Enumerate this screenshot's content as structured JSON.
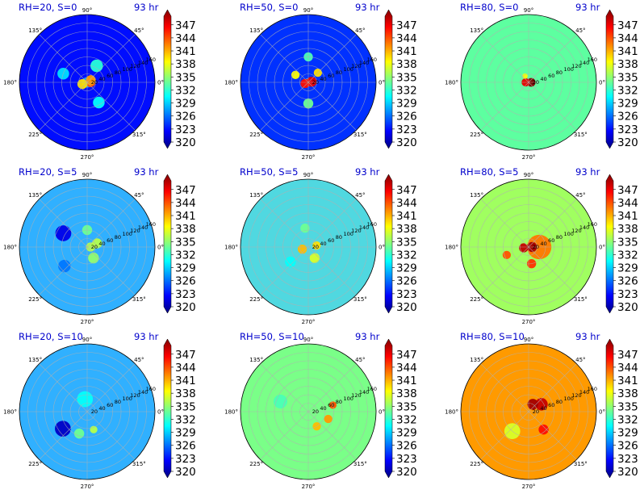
{
  "figure": {
    "colormap": [
      "#000080",
      "#0000ff",
      "#0080ff",
      "#00ffff",
      "#80ff80",
      "#ffff00",
      "#ff8000",
      "#ff0000",
      "#800000"
    ],
    "grid_color": "#b0b0b0",
    "title_color": "#0000cc"
  },
  "chart_data": [
    {
      "type": "heatmap",
      "subtype": "polar",
      "title": "RH=20, S=0",
      "time_label": "93 hr",
      "background": "#1aa0ff",
      "theta_tick_labels": [
        "90°",
        "45°",
        "0°",
        "315°",
        "270°",
        "225°",
        "180°",
        "135°"
      ],
      "r_tick_labels": [
        "20",
        "40",
        "60",
        "80",
        "100",
        "120",
        "140",
        "160"
      ],
      "colorbar": {
        "ticks": [
          "347",
          "344",
          "341",
          "338",
          "335",
          "332",
          "329",
          "326",
          "323",
          "320"
        ],
        "vmin": 320,
        "vmax": 349
      },
      "features": [
        {
          "r": 75,
          "theta": 0,
          "width": 175,
          "value": 324
        },
        {
          "r": 8,
          "theta": 0,
          "width": 15,
          "value": 343
        },
        {
          "r": 10,
          "theta": 30,
          "width": 16,
          "value": 341
        },
        {
          "r": 12,
          "theta": 200,
          "width": 16,
          "value": 339
        },
        {
          "r": 45,
          "theta": 60,
          "width": 22,
          "value": 332
        },
        {
          "r": 55,
          "theta": 300,
          "width": 20,
          "value": 331
        },
        {
          "r": 60,
          "theta": 160,
          "width": 20,
          "value": 330
        }
      ]
    },
    {
      "type": "heatmap",
      "subtype": "polar",
      "title": "RH=50, S=0",
      "time_label": "93 hr",
      "background": "#40c0ff",
      "theta_tick_labels": [
        "90°",
        "45°",
        "0°",
        "315°",
        "270°",
        "225°",
        "180°",
        "135°"
      ],
      "r_tick_labels": [
        "20",
        "40",
        "60",
        "80",
        "100",
        "120",
        "140",
        "160"
      ],
      "colorbar": {
        "ticks": [
          "347",
          "344",
          "341",
          "338",
          "335",
          "332",
          "329",
          "326",
          "323",
          "320"
        ],
        "vmin": 320,
        "vmax": 349
      },
      "features": [
        {
          "r": 80,
          "theta": 0,
          "width": 180,
          "value": 325
        },
        {
          "r": 8,
          "theta": 10,
          "width": 16,
          "value": 346
        },
        {
          "r": 8,
          "theta": 200,
          "width": 14,
          "value": 345
        },
        {
          "r": 32,
          "theta": 45,
          "width": 12,
          "value": 339
        },
        {
          "r": 35,
          "theta": 150,
          "width": 12,
          "value": 338
        },
        {
          "r": 50,
          "theta": 270,
          "width": 16,
          "value": 334
        },
        {
          "r": 60,
          "theta": 90,
          "width": 14,
          "value": 333
        }
      ]
    },
    {
      "type": "heatmap",
      "subtype": "polar",
      "title": "RH=80, S=0",
      "time_label": "93 hr",
      "background": "#5dffa0",
      "theta_tick_labels": [
        "90°",
        "45°",
        "0°",
        "315°",
        "270°",
        "225°",
        "180°",
        "135°"
      ],
      "r_tick_labels": [
        "20",
        "40",
        "60",
        "80",
        "100",
        "120",
        "140",
        "160"
      ],
      "colorbar": {
        "ticks": [
          "347",
          "344",
          "341",
          "338",
          "335",
          "332",
          "329",
          "326",
          "323",
          "320"
        ],
        "vmin": 320,
        "vmax": 349
      },
      "features": [
        {
          "r": 6,
          "theta": 0,
          "width": 13,
          "value": 349
        },
        {
          "r": 7,
          "theta": 180,
          "width": 12,
          "value": 346
        },
        {
          "r": 17,
          "theta": 120,
          "width": 5,
          "value": 338
        }
      ]
    },
    {
      "type": "heatmap",
      "subtype": "polar",
      "title": "RH=20, S=5",
      "time_label": "93 hr",
      "background": "#30b0ff",
      "theta_tick_labels": [
        "90°",
        "45°",
        "0°",
        "315°",
        "270°",
        "225°",
        "180°",
        "135°"
      ],
      "r_tick_labels": [
        "20",
        "40",
        "60",
        "80",
        "100",
        "120",
        "140",
        "160"
      ],
      "colorbar": {
        "ticks": [
          "347",
          "344",
          "341",
          "338",
          "335",
          "332",
          "329",
          "326",
          "323",
          "320"
        ],
        "vmin": 320,
        "vmax": 349
      },
      "features": [
        {
          "r": 65,
          "theta": 150,
          "width": 30,
          "value": 323
        },
        {
          "r": 70,
          "theta": 220,
          "width": 22,
          "value": 327
        },
        {
          "r": 25,
          "theta": 20,
          "width": 16,
          "value": 336
        },
        {
          "r": 30,
          "theta": 300,
          "width": 18,
          "value": 335
        },
        {
          "r": 40,
          "theta": 90,
          "width": 16,
          "value": 334
        },
        {
          "r": 8,
          "theta": 0,
          "width": 14,
          "value": 336
        }
      ]
    },
    {
      "type": "heatmap",
      "subtype": "polar",
      "title": "RH=50, S=5",
      "time_label": "93 hr",
      "background": "#50d8e0",
      "theta_tick_labels": [
        "90°",
        "45°",
        "0°",
        "315°",
        "270°",
        "225°",
        "180°",
        "135°"
      ],
      "r_tick_labels": [
        "20",
        "40",
        "60",
        "80",
        "100",
        "120",
        "140",
        "160"
      ],
      "colorbar": {
        "ticks": [
          "347",
          "344",
          "341",
          "338",
          "335",
          "332",
          "329",
          "326",
          "323",
          "320"
        ],
        "vmin": 320,
        "vmax": 349
      },
      "features": [
        {
          "r": 15,
          "theta": 200,
          "width": 14,
          "value": 340
        },
        {
          "r": 20,
          "theta": 10,
          "width": 12,
          "value": 339
        },
        {
          "r": 30,
          "theta": 300,
          "width": 16,
          "value": 337
        },
        {
          "r": 45,
          "theta": 100,
          "width": 14,
          "value": 334
        },
        {
          "r": 55,
          "theta": 220,
          "width": 18,
          "value": 331
        }
      ]
    },
    {
      "type": "heatmap",
      "subtype": "polar",
      "title": "RH=80, S=5",
      "time_label": "93 hr",
      "background": "#a0ff60",
      "theta_tick_labels": [
        "90°",
        "45°",
        "0°",
        "315°",
        "270°",
        "225°",
        "180°",
        "135°"
      ],
      "r_tick_labels": [
        "20",
        "40",
        "60",
        "80",
        "100",
        "120",
        "140",
        "160"
      ],
      "colorbar": {
        "ticks": [
          "347",
          "344",
          "341",
          "338",
          "335",
          "332",
          "329",
          "326",
          "323",
          "320"
        ],
        "vmin": 320,
        "vmax": 349
      },
      "features": [
        {
          "r": 25,
          "theta": 0,
          "width": 50,
          "value": 342
        },
        {
          "r": 8,
          "theta": 0,
          "width": 16,
          "value": 348
        },
        {
          "r": 12,
          "theta": 190,
          "width": 14,
          "value": 347
        },
        {
          "r": 40,
          "theta": 280,
          "width": 14,
          "value": 344
        },
        {
          "r": 55,
          "theta": 200,
          "width": 12,
          "value": 343
        }
      ]
    },
    {
      "type": "heatmap",
      "subtype": "polar",
      "title": "RH=20, S=10",
      "time_label": "93 hr",
      "background": "#30b0ff",
      "theta_tick_labels": [
        "90°",
        "45°",
        "0°",
        "315°",
        "270°",
        "225°",
        "180°",
        "135°"
      ],
      "r_tick_labels": [
        "20",
        "40",
        "60",
        "80",
        "100",
        "120",
        "140",
        "160"
      ],
      "colorbar": {
        "ticks": [
          "347",
          "344",
          "341",
          "338",
          "335",
          "332",
          "329",
          "326",
          "323",
          "320"
        ],
        "vmin": 320,
        "vmax": 349
      },
      "features": [
        {
          "r": 70,
          "theta": 215,
          "width": 30,
          "value": 322
        },
        {
          "r": 55,
          "theta": 250,
          "width": 16,
          "value": 334
        },
        {
          "r": 45,
          "theta": 290,
          "width": 10,
          "value": 336
        },
        {
          "r": 30,
          "theta": 100,
          "width": 30,
          "value": 331
        }
      ]
    },
    {
      "type": "heatmap",
      "subtype": "polar",
      "title": "RH=50, S=10",
      "time_label": "93 hr",
      "background": "#7aff88",
      "theta_tick_labels": [
        "90°",
        "45°",
        "0°",
        "315°",
        "270°",
        "225°",
        "180°",
        "135°"
      ],
      "r_tick_labels": [
        "20",
        "40",
        "60",
        "80",
        "100",
        "120",
        "140",
        "160"
      ],
      "colorbar": {
        "ticks": [
          "347",
          "344",
          "341",
          "338",
          "335",
          "332",
          "329",
          "326",
          "323",
          "320"
        ],
        "vmin": 320,
        "vmax": 349
      },
      "features": [
        {
          "r": 50,
          "theta": 340,
          "width": 12,
          "value": 341
        },
        {
          "r": 60,
          "theta": 15,
          "width": 10,
          "value": 343
        },
        {
          "r": 40,
          "theta": 300,
          "width": 12,
          "value": 340
        },
        {
          "r": 70,
          "theta": 160,
          "width": 25,
          "value": 333
        }
      ]
    },
    {
      "type": "heatmap",
      "subtype": "polar",
      "title": "RH=80, S=10",
      "time_label": "93 hr",
      "background": "#ff9a00",
      "theta_tick_labels": [
        "90°",
        "45°",
        "0°",
        "315°",
        "270°",
        "225°",
        "180°",
        "135°"
      ],
      "r_tick_labels": [
        "20",
        "40",
        "60",
        "80",
        "100",
        "120",
        "140",
        "160"
      ],
      "colorbar": {
        "ticks": [
          "347",
          "344",
          "341",
          "338",
          "335",
          "332",
          "329",
          "326",
          "323",
          "320"
        ],
        "vmin": 320,
        "vmax": 349
      },
      "features": [
        {
          "r": 35,
          "theta": 30,
          "width": 22,
          "value": 347
        },
        {
          "r": 20,
          "theta": 60,
          "width": 18,
          "value": 348
        },
        {
          "r": 60,
          "theta": 230,
          "width": 30,
          "value": 337
        },
        {
          "r": 55,
          "theta": 310,
          "width": 16,
          "value": 345
        },
        {
          "r": 70,
          "theta": 150,
          "width": 22,
          "value": 341
        }
      ]
    }
  ]
}
